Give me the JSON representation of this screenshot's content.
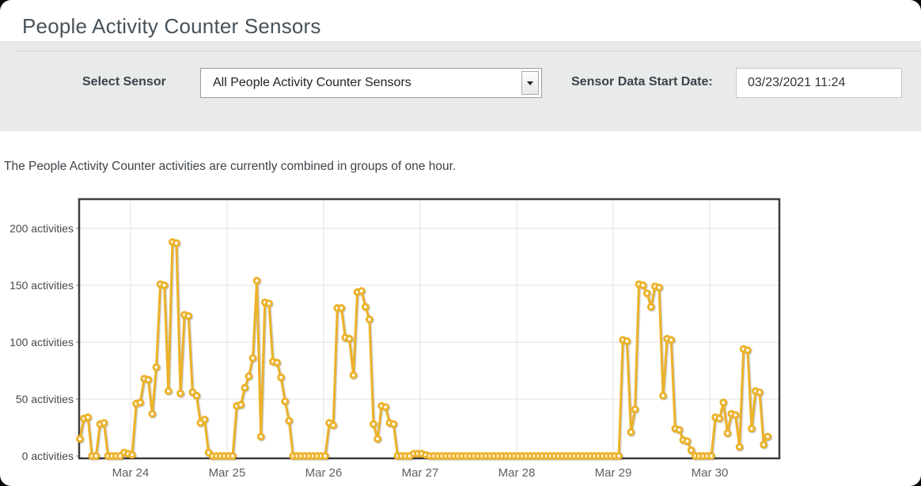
{
  "header": {
    "title": "People Activity Counter Sensors"
  },
  "controls": {
    "sensor_label": "Select Sensor",
    "sensor_select": {
      "value": "All People Activity Counter Sensors"
    },
    "date_label": "Sensor Data Start Date:",
    "date_field": {
      "value": "03/23/2021 11:24"
    }
  },
  "description": "The People Activity Counter activities are currently combined in groups of one hour.",
  "chart_data": {
    "type": "line",
    "title": "",
    "unit": "activities",
    "grouping": "1 hour",
    "start_time": "03/23/2021 11:24",
    "series_name": "People Activity Counter activities per hour",
    "series_color": "#ecb22a",
    "marker": "open-circle",
    "grid": true,
    "legend": false,
    "ylim": [
      0,
      226
    ],
    "y_tick_values": [
      0,
      50,
      100,
      150,
      200
    ],
    "y_tick_labels": [
      "0 activities",
      "50 activities",
      "100 activities",
      "150 activities",
      "200 activities"
    ],
    "x_tick_labels": [
      "Mar 24",
      "Mar 25",
      "Mar 26",
      "Mar 27",
      "Mar 28",
      "Mar 29",
      "Mar 30"
    ],
    "first_point_hours_after_mar23_midnight": 11.4,
    "interval_hours": 1,
    "values": [
      15,
      33,
      34,
      0,
      0,
      28,
      29,
      0,
      0,
      0,
      0,
      3,
      2,
      1,
      46,
      47,
      68,
      67,
      37,
      78,
      151,
      150,
      57,
      188,
      187,
      55,
      124,
      123,
      56,
      53,
      29,
      32,
      3,
      0,
      0,
      0,
      0,
      0,
      0,
      44,
      45,
      60,
      70,
      86,
      154,
      17,
      135,
      134,
      83,
      82,
      69,
      48,
      31,
      0,
      0,
      0,
      0,
      0,
      0,
      0,
      0,
      0,
      29,
      27,
      130,
      130,
      104,
      103,
      71,
      144,
      145,
      131,
      120,
      28,
      15,
      44,
      43,
      29,
      28,
      0,
      0,
      0,
      0,
      2,
      2,
      2,
      1,
      0,
      0,
      0,
      0,
      0,
      0,
      0,
      0,
      0,
      0,
      0,
      0,
      0,
      0,
      0,
      0,
      0,
      0,
      0,
      0,
      0,
      0,
      0,
      0,
      0,
      0,
      0,
      0,
      0,
      0,
      0,
      0,
      0,
      0,
      0,
      0,
      0,
      0,
      0,
      0,
      0,
      0,
      0,
      0,
      0,
      0,
      0,
      0,
      102,
      101,
      21,
      41,
      151,
      150,
      143,
      131,
      149,
      148,
      53,
      103,
      102,
      24,
      23,
      14,
      13,
      5,
      0,
      0,
      0,
      0,
      0,
      34,
      33,
      47,
      20,
      37,
      36,
      8,
      94,
      93,
      24,
      57,
      56,
      10,
      17
    ]
  }
}
